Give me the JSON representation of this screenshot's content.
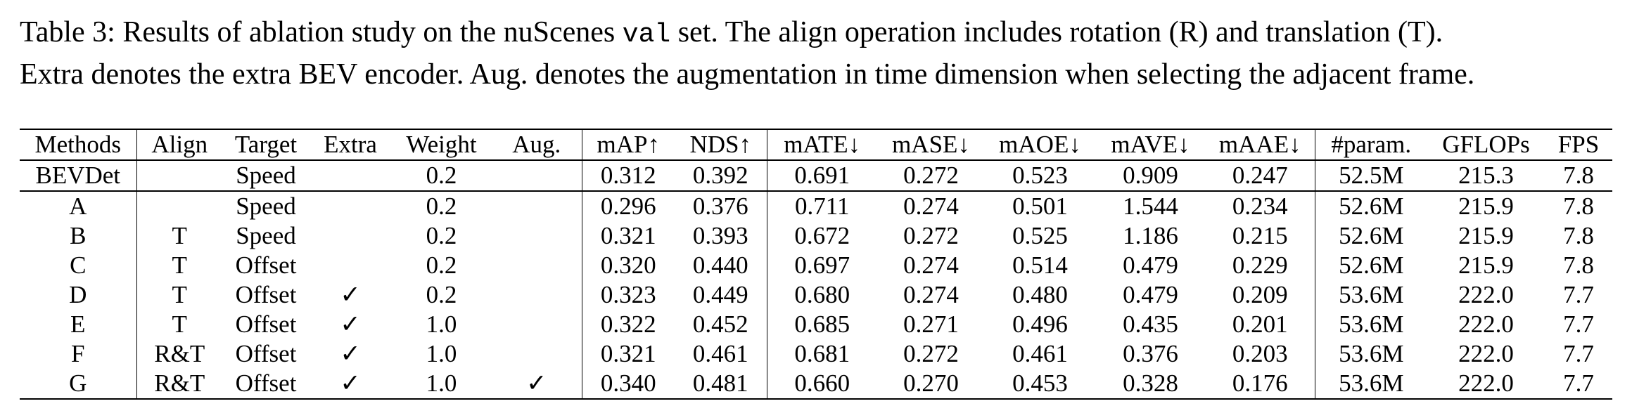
{
  "caption": {
    "part1": "Table 3: Results of ablation study on the nuScenes ",
    "mono": "val",
    "part2": " set. The align operation includes rotation (R) and translation (T).",
    "line2": "Extra denotes the extra BEV encoder. Aug. denotes the augmentation in time dimension when selecting the adjacent frame."
  },
  "table": {
    "headers": [
      "Methods",
      "Align",
      "Target",
      "Extra",
      "Weight",
      "Aug.",
      "mAP↑",
      "NDS↑",
      "mATE↓",
      "mASE↓",
      "mAOE↓",
      "mAVE↓",
      "mAAE↓",
      "#param.",
      "GFLOPs",
      "FPS"
    ],
    "rows": [
      [
        "BEVDet",
        "",
        "Speed",
        "",
        "0.2",
        "",
        "0.312",
        "0.392",
        "0.691",
        "0.272",
        "0.523",
        "0.909",
        "0.247",
        "52.5M",
        "215.3",
        "7.8"
      ],
      [
        "A",
        "",
        "Speed",
        "",
        "0.2",
        "",
        "0.296",
        "0.376",
        "0.711",
        "0.274",
        "0.501",
        "1.544",
        "0.234",
        "52.6M",
        "215.9",
        "7.8"
      ],
      [
        "B",
        "T",
        "Speed",
        "",
        "0.2",
        "",
        "0.321",
        "0.393",
        "0.672",
        "0.272",
        "0.525",
        "1.186",
        "0.215",
        "52.6M",
        "215.9",
        "7.8"
      ],
      [
        "C",
        "T",
        "Offset",
        "",
        "0.2",
        "",
        "0.320",
        "0.440",
        "0.697",
        "0.274",
        "0.514",
        "0.479",
        "0.229",
        "52.6M",
        "215.9",
        "7.8"
      ],
      [
        "D",
        "T",
        "Offset",
        "✓",
        "0.2",
        "",
        "0.323",
        "0.449",
        "0.680",
        "0.274",
        "0.480",
        "0.479",
        "0.209",
        "53.6M",
        "222.0",
        "7.7"
      ],
      [
        "E",
        "T",
        "Offset",
        "✓",
        "1.0",
        "",
        "0.322",
        "0.452",
        "0.685",
        "0.271",
        "0.496",
        "0.435",
        "0.201",
        "53.6M",
        "222.0",
        "7.7"
      ],
      [
        "F",
        "R&T",
        "Offset",
        "✓",
        "1.0",
        "",
        "0.321",
        "0.461",
        "0.681",
        "0.272",
        "0.461",
        "0.376",
        "0.203",
        "53.6M",
        "222.0",
        "7.7"
      ],
      [
        "G",
        "R&T",
        "Offset",
        "✓",
        "1.0",
        "✓",
        "0.340",
        "0.481",
        "0.660",
        "0.270",
        "0.453",
        "0.328",
        "0.176",
        "53.6M",
        "222.0",
        "7.7"
      ]
    ]
  }
}
